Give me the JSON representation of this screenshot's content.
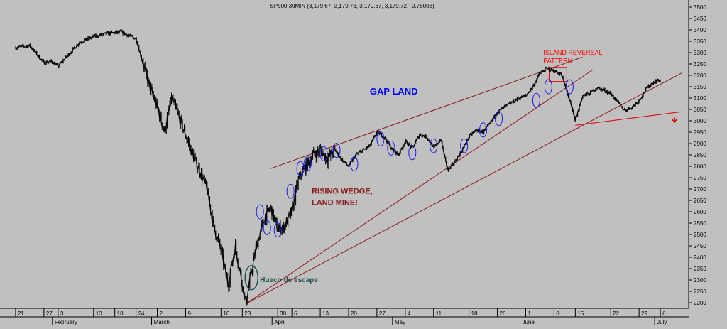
{
  "chart_data": {
    "type": "line",
    "title": "SP500 30MIN (3,179.67, 3,179.73, 3,179.67, 3,179.72, -0.78003)",
    "xlabel": "",
    "ylabel": "",
    "ylim": [
      2170,
      3560
    ],
    "y_ticks": [
      2200,
      2250,
      2300,
      2350,
      2400,
      2450,
      2500,
      2550,
      2600,
      2650,
      2700,
      2750,
      2800,
      2850,
      2900,
      2950,
      3000,
      3050,
      3100,
      3150,
      3200,
      3250,
      3300,
      3350,
      3400,
      3450,
      3500
    ],
    "x_day_ticks": [
      {
        "t": 0,
        "label": "21"
      },
      {
        "t": 4,
        "label": "27"
      },
      {
        "t": 6,
        "label": "3"
      },
      {
        "t": 11,
        "label": "10"
      },
      {
        "t": 14,
        "label": "18"
      },
      {
        "t": 17,
        "label": "24"
      },
      {
        "t": 20,
        "label": "2"
      },
      {
        "t": 24,
        "label": "9"
      },
      {
        "t": 29,
        "label": "16"
      },
      {
        "t": 32,
        "label": "23"
      },
      {
        "t": 37,
        "label": "30"
      },
      {
        "t": 39,
        "label": "6"
      },
      {
        "t": 43,
        "label": "13"
      },
      {
        "t": 47,
        "label": "20"
      },
      {
        "t": 51,
        "label": "27"
      },
      {
        "t": 55,
        "label": "4"
      },
      {
        "t": 59,
        "label": "11"
      },
      {
        "t": 64,
        "label": "18"
      },
      {
        "t": 68,
        "label": "26"
      },
      {
        "t": 72,
        "label": "1"
      },
      {
        "t": 76,
        "label": "8"
      },
      {
        "t": 79,
        "label": "15"
      },
      {
        "t": 84,
        "label": "22"
      },
      {
        "t": 88,
        "label": "29"
      },
      {
        "t": 91,
        "label": "6"
      }
    ],
    "x_month_labels": [
      {
        "t": 5.5,
        "label": "February"
      },
      {
        "t": 19.5,
        "label": "March"
      },
      {
        "t": 36.5,
        "label": "April"
      },
      {
        "t": 53.5,
        "label": "May"
      },
      {
        "t": 71.5,
        "label": "June"
      },
      {
        "t": 90.5,
        "label": "July"
      }
    ],
    "series": [
      {
        "values": [
          [
            0,
            3322
          ],
          [
            2,
            3330
          ],
          [
            4,
            3255
          ],
          [
            5,
            3262
          ],
          [
            6,
            3240
          ],
          [
            7,
            3275
          ],
          [
            9,
            3345
          ],
          [
            11,
            3370
          ],
          [
            13,
            3385
          ],
          [
            15,
            3390
          ],
          [
            17,
            3360
          ],
          [
            18,
            3250
          ],
          [
            19,
            3140
          ],
          [
            20,
            3060
          ],
          [
            21,
            2950
          ],
          [
            22,
            3100
          ],
          [
            23,
            3020
          ],
          [
            24,
            2935
          ],
          [
            25,
            2850
          ],
          [
            26,
            2780
          ],
          [
            27,
            2700
          ],
          [
            28,
            2530
          ],
          [
            29,
            2430
          ],
          [
            29.5,
            2350
          ],
          [
            30,
            2280
          ],
          [
            31,
            2450
          ],
          [
            32,
            2280
          ],
          [
            32.5,
            2195
          ],
          [
            33,
            2290
          ],
          [
            34,
            2450
          ],
          [
            35,
            2560
          ],
          [
            36,
            2620
          ],
          [
            37,
            2520
          ],
          [
            38,
            2540
          ],
          [
            39,
            2600
          ],
          [
            40,
            2750
          ],
          [
            41,
            2800
          ],
          [
            42,
            2850
          ],
          [
            43,
            2870
          ],
          [
            44,
            2830
          ],
          [
            45,
            2875
          ],
          [
            46,
            2830
          ],
          [
            47,
            2800
          ],
          [
            48,
            2850
          ],
          [
            49,
            2870
          ],
          [
            50,
            2890
          ],
          [
            51,
            2950
          ],
          [
            52,
            2930
          ],
          [
            53,
            2880
          ],
          [
            54,
            2850
          ],
          [
            55,
            2910
          ],
          [
            56,
            2880
          ],
          [
            57,
            2940
          ],
          [
            58,
            2930
          ],
          [
            59,
            2880
          ],
          [
            60,
            2920
          ],
          [
            61,
            2780
          ],
          [
            62,
            2820
          ],
          [
            63,
            2870
          ],
          [
            64,
            2930
          ],
          [
            65,
            2960
          ],
          [
            66,
            2950
          ],
          [
            67,
            2990
          ],
          [
            68,
            3040
          ],
          [
            69,
            3060
          ],
          [
            70,
            3080
          ],
          [
            71,
            3100
          ],
          [
            72,
            3110
          ],
          [
            73,
            3150
          ],
          [
            74,
            3210
          ],
          [
            75,
            3230
          ],
          [
            76,
            3220
          ],
          [
            77,
            3205
          ],
          [
            78,
            3110
          ],
          [
            79,
            3000
          ],
          [
            80,
            3110
          ],
          [
            81,
            3120
          ],
          [
            82,
            3145
          ],
          [
            83,
            3135
          ],
          [
            84,
            3120
          ],
          [
            85,
            3080
          ],
          [
            86,
            3045
          ],
          [
            87,
            3060
          ],
          [
            88,
            3090
          ],
          [
            89,
            3140
          ],
          [
            90,
            3170
          ],
          [
            91,
            3180
          ]
        ]
      }
    ],
    "gap_ellipses": [
      {
        "t": 34.5,
        "price": 2600
      },
      {
        "t": 35.5,
        "price": 2530
      },
      {
        "t": 37,
        "price": 2520
      },
      {
        "t": 38.8,
        "price": 2690
      },
      {
        "t": 40.2,
        "price": 2790
      },
      {
        "t": 41.2,
        "price": 2810
      },
      {
        "t": 43.5,
        "price": 2855
      },
      {
        "t": 45.3,
        "price": 2870
      },
      {
        "t": 47.8,
        "price": 2810
      },
      {
        "t": 51.5,
        "price": 2920
      },
      {
        "t": 53,
        "price": 2880
      },
      {
        "t": 56,
        "price": 2860
      },
      {
        "t": 59,
        "price": 2890
      },
      {
        "t": 63.3,
        "price": 2890
      },
      {
        "t": 66,
        "price": 2960
      },
      {
        "t": 68.2,
        "price": 3010
      },
      {
        "t": 73.5,
        "price": 3090
      },
      {
        "t": 75.2,
        "price": 3150
      },
      {
        "t": 78.2,
        "price": 3150
      }
    ],
    "escape_gap_ellipse": {
      "t": 33.3,
      "price": 2310
    },
    "trendlines": [
      {
        "t1": 36,
        "p1": 2790,
        "t2": 80,
        "p2": 3280
      },
      {
        "t1": 32.5,
        "p1": 2195,
        "t2": 81.5,
        "p2": 3225
      },
      {
        "t1": 32.5,
        "p1": 2195,
        "t2": 94,
        "p2": 3210
      },
      {
        "t1": 79,
        "p1": 2980,
        "t2": 94,
        "p2": 3040
      }
    ],
    "island_box": {
      "t1": 75.3,
      "p1": 3235,
      "t2": 77.8,
      "p2": 3173
    },
    "annotations": [
      {
        "text": "GAP LAND",
        "t": 50,
        "price": 3115,
        "color": "#0000ff",
        "size": 13,
        "bold": true
      },
      {
        "text": "RISING WEDGE,",
        "t": 41.8,
        "price": 2680,
        "color": "#8b1a1a",
        "size": 11,
        "bold": true
      },
      {
        "text": "LAND MINE!",
        "t": 41.8,
        "price": 2630,
        "color": "#8b1a1a",
        "size": 11,
        "bold": true
      },
      {
        "text": "ISLAND REVERSAL",
        "t": 74.5,
        "price": 3290,
        "color": "#ff0000",
        "size": 9,
        "bold": false
      },
      {
        "text": "PATTERN",
        "t": 74.5,
        "price": 3255,
        "color": "#ff0000",
        "size": 9,
        "bold": false
      },
      {
        "text": "Hueco de escape",
        "t": 34.5,
        "price": 2290,
        "color": "#1f4f4f",
        "size": 10,
        "bold": true
      }
    ],
    "down_arrow": {
      "t": 93,
      "price": 3000
    },
    "colors": {
      "background": "#c0c0c0",
      "price": "#000000",
      "gap_marker": "#1d1df0",
      "trendline": "#8b1a1a",
      "island_box": "#e00000",
      "escape_marker": "#1f4f4f",
      "support_line": "#e00000"
    }
  }
}
